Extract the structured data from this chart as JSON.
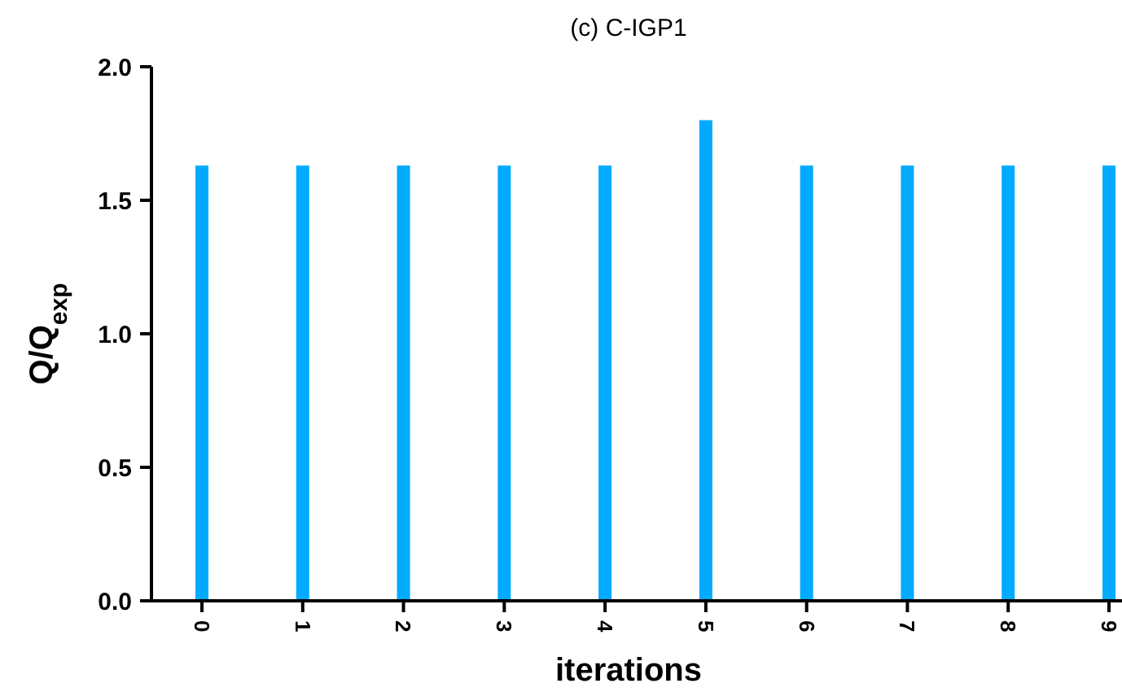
{
  "chart_data": {
    "type": "bar",
    "title": "(c) C-IGP1",
    "xlabel": "iterations",
    "ylabel": "Q/Q$_{exp}$",
    "categories": [
      "0",
      "1",
      "2",
      "3",
      "4",
      "5",
      "6",
      "7",
      "8",
      "9"
    ],
    "values": [
      1.63,
      1.63,
      1.63,
      1.63,
      1.63,
      1.8,
      1.63,
      1.63,
      1.63,
      1.63
    ],
    "color": "#00aaff",
    "ylim": [
      0,
      2
    ],
    "yticks": [
      {
        "value": 0,
        "label": "0.0"
      },
      {
        "value": 0.5,
        "label": "0.5"
      },
      {
        "value": 1,
        "label": "1.0"
      },
      {
        "value": 1.5,
        "label": "1.5"
      },
      {
        "value": 2,
        "label": "2.0"
      }
    ],
    "grid": false
  }
}
